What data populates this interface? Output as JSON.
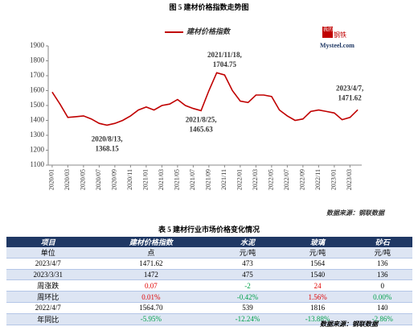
{
  "chart_data": {
    "type": "line",
    "title": "图 5 建材价格指数走势图",
    "categories": [
      "2020/01",
      null,
      "2020/03",
      null,
      "2020/05",
      null,
      "2020/07",
      null,
      "2020/09",
      null,
      "2020/11",
      null,
      "2021/01",
      null,
      "2021/03",
      null,
      "2021/05",
      null,
      "2021/07",
      null,
      "2021/09",
      null,
      "2021/11",
      null,
      "2022/01",
      null,
      "2022/03",
      null,
      "2022/05",
      null,
      "2022/07",
      null,
      "2022/09",
      null,
      "2022/11",
      null,
      "2023/01",
      null,
      "2023/03",
      null
    ],
    "series": [
      {
        "name": "建材价格指数",
        "color": "#c00000",
        "values": [
          1590,
          1510,
          1420,
          1425,
          1430,
          1410,
          1380,
          1368.15,
          1380,
          1400,
          1430,
          1470,
          1490,
          1470,
          1500,
          1510,
          1540,
          1500,
          1480,
          1465.63,
          1600,
          1720,
          1704.75,
          1600,
          1530,
          1520,
          1570,
          1570,
          1560,
          1470,
          1430,
          1400,
          1410,
          1460,
          1470,
          1460,
          1450,
          1405,
          1420,
          1471.62
        ]
      }
    ],
    "ylim": [
      1100,
      1900
    ],
    "yticks": [
      1100,
      1200,
      1300,
      1400,
      1500,
      1600,
      1700,
      1800,
      1900
    ],
    "annotations": [
      {
        "date": "2020/8/13,",
        "value": 1368.15
      },
      {
        "date": "2021/8/25,",
        "value": 1465.63
      },
      {
        "date": "2021/11/18,",
        "value": 1704.75
      },
      {
        "date": "2023/4/7,",
        "value": 1471.62
      }
    ],
    "logo": [
      "我的",
      "钢铁",
      "Mysteel.com"
    ],
    "source": "数据来源：钢联数据"
  },
  "table": {
    "title": "表 5 建材行业市场价格变化情况",
    "header": [
      "项目",
      "建材价格指数",
      "水泥",
      "玻璃",
      "砂石"
    ],
    "rows": [
      [
        "单位",
        "点",
        "元/吨",
        "元/吨",
        "元/吨"
      ],
      [
        "2023/4/7",
        "1471.62",
        "473",
        "1564",
        "136"
      ],
      [
        "2023/3/31",
        "1472",
        "475",
        "1540",
        "136"
      ],
      [
        "周涨跌",
        "0.07",
        "-2",
        "24",
        "0"
      ],
      [
        "周环比",
        "0.01%",
        "-0.42%",
        "1.56%",
        "0.00%"
      ],
      [
        "2022/4/7",
        "1564.70",
        "539",
        "1816",
        "140"
      ],
      [
        "年同比",
        "-5.95%",
        "-12.24%",
        "-13.88%",
        "-2.86%"
      ]
    ],
    "source": "数据来源：钢联数据"
  }
}
